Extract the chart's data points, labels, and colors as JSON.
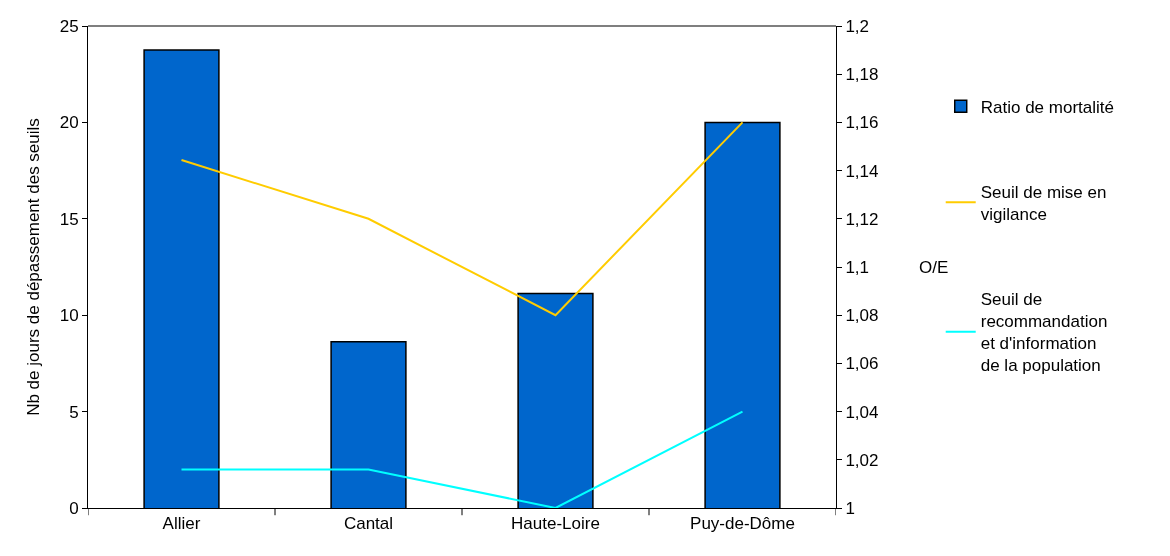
{
  "chart_data": {
    "type": "bar",
    "ylabel": "Nb de jours de dépassement des seuils",
    "y2label": "O/E",
    "categories": [
      "Allier",
      "Cantal",
      "Haute-Loire",
      "Puy-de-Dôme"
    ],
    "series": [
      {
        "name": "Ratio de mortalité",
        "axis": "y2",
        "color": "#0066cc",
        "values": [
          1.19,
          1.069,
          1.089,
          1.16
        ]
      },
      {
        "name": "Seuil de mise en vigilance",
        "type": "line",
        "color": "#ffcc00",
        "values": [
          18.05,
          15,
          10,
          20
        ]
      },
      {
        "name": "Seuil de recommandation et d'information de la population",
        "type": "line",
        "color": "#00ffff",
        "values": [
          2,
          2,
          0,
          5
        ]
      }
    ],
    "ylim": [
      0,
      25
    ],
    "yticks": [
      0,
      5,
      10,
      15,
      20,
      25
    ],
    "y2lim": [
      1,
      1.2
    ],
    "y2ticks": [
      {
        "value": 1,
        "label": "1"
      },
      {
        "value": 1.02,
        "label": "1,02"
      },
      {
        "value": 1.04,
        "label": "1,04"
      },
      {
        "value": 1.06,
        "label": "1,06"
      },
      {
        "value": 1.08,
        "label": "1,08"
      },
      {
        "value": 1.1,
        "label": "1,1"
      },
      {
        "value": 1.12,
        "label": "1,12"
      },
      {
        "value": 1.14,
        "label": "1,14"
      },
      {
        "value": 1.16,
        "label": "1,16"
      },
      {
        "value": 1.18,
        "label": "1,18"
      },
      {
        "value": 1.2,
        "label": "1,2"
      }
    ],
    "legend": "right",
    "marker": "none",
    "line_style": "solid"
  }
}
